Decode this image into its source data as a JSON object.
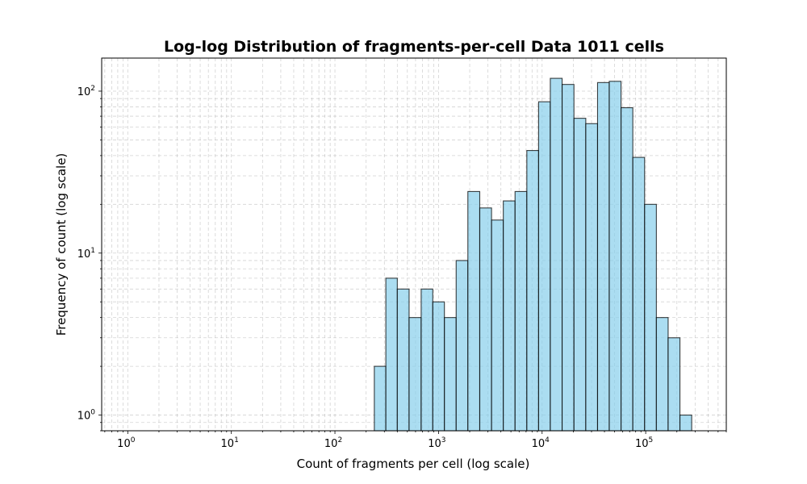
{
  "chart_data": {
    "type": "bar",
    "title": "Log-log Distribution of fragments-per-cell Data 1011 cells",
    "xlabel": "Count of fragments per cell (log scale)",
    "ylabel": "Frequency of count (log scale)",
    "x_scale": "log",
    "y_scale": "log",
    "xlim": [
      0.56,
      600000
    ],
    "ylim": [
      0.8,
      160
    ],
    "grid": true,
    "grid_style": "dashed",
    "bar_color": "#87CEEB",
    "bar_alpha": 0.7,
    "bar_edge_color": "#000000",
    "x_ticks": [
      {
        "base": "10",
        "exp": "0"
      },
      {
        "base": "10",
        "exp": "1"
      },
      {
        "base": "10",
        "exp": "2"
      },
      {
        "base": "10",
        "exp": "3"
      },
      {
        "base": "10",
        "exp": "4"
      },
      {
        "base": "10",
        "exp": "5"
      }
    ],
    "y_ticks": [
      {
        "base": "10",
        "exp": "0"
      },
      {
        "base": "10",
        "exp": "1"
      },
      {
        "base": "10",
        "exp": "2"
      }
    ],
    "bins": [
      {
        "lo": 240,
        "hi": 310,
        "count": 2
      },
      {
        "lo": 310,
        "hi": 400,
        "count": 7
      },
      {
        "lo": 400,
        "hi": 520,
        "count": 6
      },
      {
        "lo": 520,
        "hi": 680,
        "count": 4
      },
      {
        "lo": 680,
        "hi": 880,
        "count": 6
      },
      {
        "lo": 880,
        "hi": 1140,
        "count": 5
      },
      {
        "lo": 1140,
        "hi": 1480,
        "count": 4
      },
      {
        "lo": 1480,
        "hi": 1920,
        "count": 9
      },
      {
        "lo": 1920,
        "hi": 2500,
        "count": 24
      },
      {
        "lo": 2500,
        "hi": 3250,
        "count": 19
      },
      {
        "lo": 3250,
        "hi": 4220,
        "count": 16
      },
      {
        "lo": 4220,
        "hi": 5480,
        "count": 21
      },
      {
        "lo": 5480,
        "hi": 7120,
        "count": 24
      },
      {
        "lo": 7120,
        "hi": 9250,
        "count": 43
      },
      {
        "lo": 9250,
        "hi": 12000,
        "count": 86
      },
      {
        "lo": 12000,
        "hi": 15600,
        "count": 120
      },
      {
        "lo": 15600,
        "hi": 20300,
        "count": 110
      },
      {
        "lo": 20300,
        "hi": 26400,
        "count": 68
      },
      {
        "lo": 26400,
        "hi": 34300,
        "count": 63
      },
      {
        "lo": 34300,
        "hi": 44500,
        "count": 113
      },
      {
        "lo": 44500,
        "hi": 57800,
        "count": 115
      },
      {
        "lo": 57800,
        "hi": 75100,
        "count": 79
      },
      {
        "lo": 75100,
        "hi": 97600,
        "count": 39
      },
      {
        "lo": 97600,
        "hi": 126800,
        "count": 20
      },
      {
        "lo": 126800,
        "hi": 164700,
        "count": 4
      },
      {
        "lo": 164700,
        "hi": 214000,
        "count": 3
      },
      {
        "lo": 214000,
        "hi": 278000,
        "count": 1
      }
    ]
  }
}
